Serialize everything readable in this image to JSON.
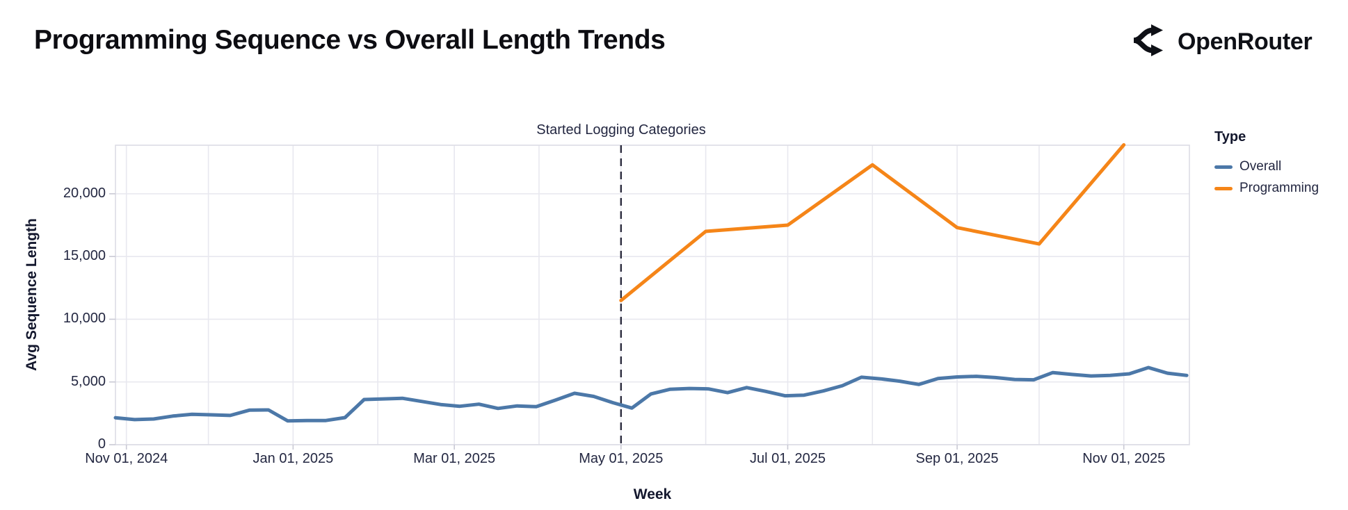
{
  "header": {
    "title": "Programming Sequence vs Overall Length Trends",
    "brand": "OpenRouter"
  },
  "chart_data": {
    "type": "line",
    "title": "Programming Sequence vs Overall Length Trends",
    "xlabel": "Week",
    "ylabel": "Avg Sequence Length",
    "grid": true,
    "legend_position": "right",
    "annotation": {
      "label": "Started Logging Categories",
      "day": 185
    },
    "x_axis": {
      "title": "Week",
      "domain_days": 393,
      "start_date": "Oct 28, 2024",
      "ticks": [
        {
          "day": 4,
          "label": "Nov 01, 2024"
        },
        {
          "day": 65,
          "label": "Jan 01, 2025"
        },
        {
          "day": 124,
          "label": "Mar 01, 2025"
        },
        {
          "day": 185,
          "label": "May 01, 2025"
        },
        {
          "day": 246,
          "label": "Jul 01, 2025"
        },
        {
          "day": 308,
          "label": "Sep 01, 2025"
        },
        {
          "day": 369,
          "label": "Nov 01, 2025"
        }
      ],
      "month_gridline_days": [
        4,
        34,
        65,
        96,
        124,
        155,
        185,
        216,
        246,
        277,
        308,
        338,
        369
      ]
    },
    "y_axis": {
      "title": "Avg Sequence Length",
      "domain": [
        0,
        23870
      ],
      "ticks": [
        0,
        5000,
        10000,
        15000,
        20000
      ],
      "tick_labels": [
        "0",
        "5,000",
        "10,000",
        "15,000",
        "20,000"
      ]
    },
    "legend": {
      "title": "Type"
    },
    "colors": {
      "overall": "#4c78a8",
      "programming": "#f58518"
    },
    "series": [
      {
        "name": "Overall",
        "color": "#4c78a8",
        "cadence": "weekly",
        "start_day": 0,
        "step_days": 7,
        "values": [
          2150,
          2000,
          2050,
          2280,
          2420,
          2380,
          2330,
          2750,
          2770,
          1900,
          1930,
          1930,
          2160,
          3600,
          3650,
          3700,
          3450,
          3200,
          3060,
          3230,
          2890,
          3090,
          3030,
          3550,
          4100,
          3850,
          3350,
          2920,
          4050,
          4420,
          4480,
          4450,
          4150,
          4550,
          4250,
          3900,
          3950,
          4280,
          4700,
          5380,
          5250,
          5060,
          4800,
          5280,
          5400,
          5450,
          5350,
          5200,
          5170,
          5750,
          5600,
          5480,
          5520,
          5650,
          6150,
          5700,
          5520
        ]
      },
      {
        "name": "Programming",
        "color": "#f58518",
        "cadence": "monthly",
        "points": [
          {
            "day": 185,
            "value": 11500
          },
          {
            "day": 216,
            "value": 17000
          },
          {
            "day": 246,
            "value": 17500
          },
          {
            "day": 277,
            "value": 22300
          },
          {
            "day": 308,
            "value": 17300
          },
          {
            "day": 338,
            "value": 16000
          },
          {
            "day": 369,
            "value": 23900
          }
        ]
      }
    ]
  }
}
